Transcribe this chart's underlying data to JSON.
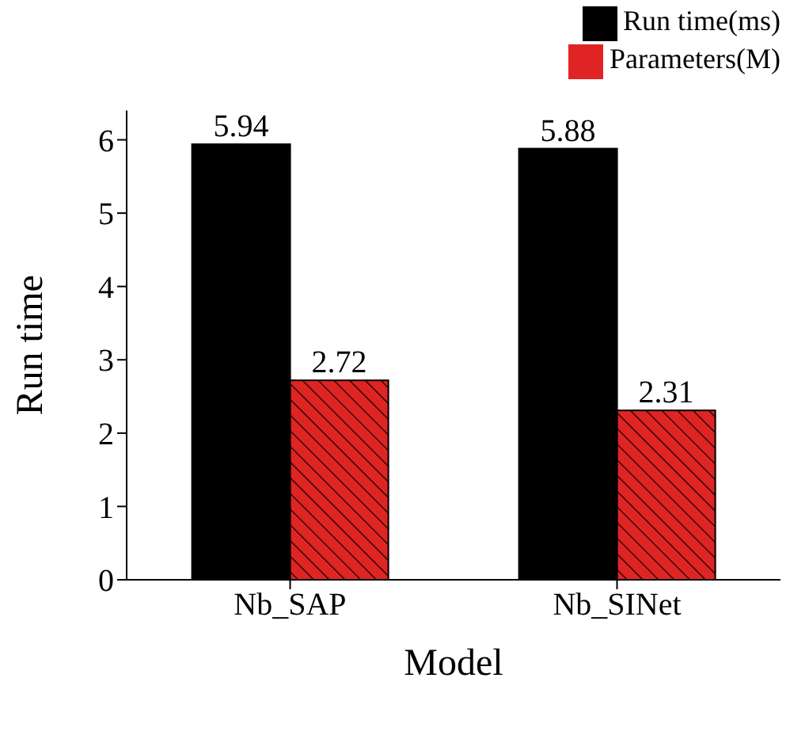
{
  "chart_data": {
    "type": "bar",
    "xlabel": "Model",
    "ylabel": "Run time",
    "categories": [
      "Nb_SAP",
      "Nb_SINet"
    ],
    "series": [
      {
        "name": "Run time(ms)",
        "color": "#000000",
        "values": [
          5.94,
          5.88
        ]
      },
      {
        "name": "Parameters(M)",
        "color": "#e02424",
        "values": [
          2.72,
          2.31
        ]
      }
    ],
    "ylim": [
      0,
      6.4
    ],
    "yticks": [
      0,
      1,
      2,
      3,
      4,
      5,
      6
    ],
    "data_labels": true,
    "legend": "top right",
    "grid": false
  }
}
